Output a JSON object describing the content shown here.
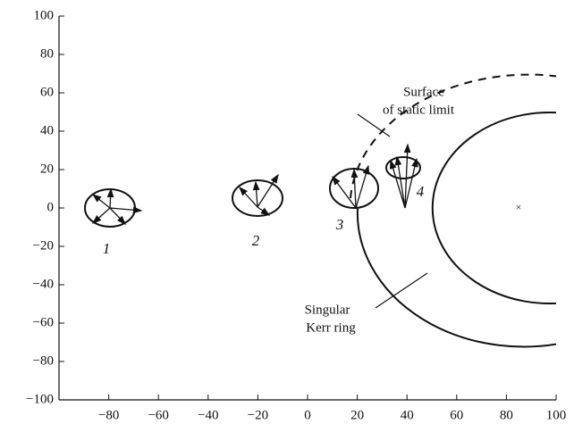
{
  "chart_data": {
    "type": "diagram",
    "xlim": [
      -100,
      100
    ],
    "ylim": [
      -100,
      100
    ],
    "xticks": [
      {
        "value": -80,
        "label": "−80"
      },
      {
        "value": -60,
        "label": "−60"
      },
      {
        "value": -40,
        "label": "−40"
      },
      {
        "value": -20,
        "label": "−20"
      },
      0,
      20,
      40,
      60,
      80,
      100
    ],
    "yticks": [
      {
        "value": -100,
        "label": "−100"
      },
      {
        "value": -80,
        "label": "−80"
      },
      {
        "value": -60,
        "label": "−60"
      },
      {
        "value": -40,
        "label": "−40"
      },
      {
        "value": -20,
        "label": "−20"
      },
      0,
      20,
      40,
      60,
      80,
      100
    ],
    "annotations": [
      "Surface",
      "of static limit",
      "Singular",
      "Kerr ring",
      "1",
      "2",
      "3",
      "4",
      "×"
    ]
  }
}
